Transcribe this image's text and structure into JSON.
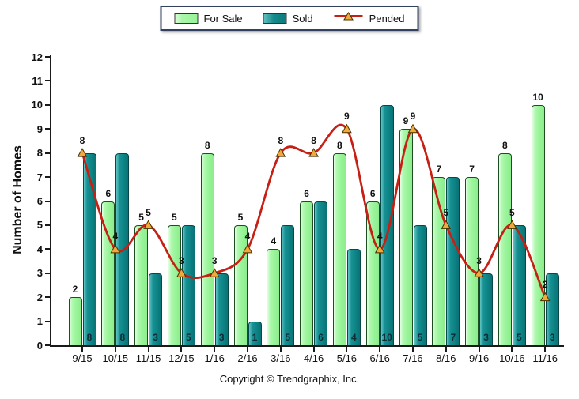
{
  "legend": {
    "items": [
      {
        "label": "For Sale",
        "color": "#99f599"
      },
      {
        "label": "Sold",
        "color": "#0e8587"
      },
      {
        "label": "Pended",
        "color": "#c62014"
      }
    ]
  },
  "y_axis": {
    "title": "Number of Homes",
    "min": 0,
    "max": 12,
    "tick_step": 1
  },
  "footer": {
    "copyright": "Copyright © Trendgraphix, Inc."
  },
  "chart_data": {
    "type": "bar",
    "categories": [
      "9/15",
      "10/15",
      "11/15",
      "12/15",
      "1/16",
      "2/16",
      "3/16",
      "4/16",
      "5/16",
      "6/16",
      "7/16",
      "8/16",
      "9/16",
      "10/16",
      "11/16"
    ],
    "series": [
      {
        "name": "For Sale",
        "type": "bar",
        "color": "#99f599",
        "values": [
          2,
          6,
          5,
          5,
          8,
          5,
          4,
          6,
          8,
          6,
          9,
          7,
          7,
          8,
          10
        ]
      },
      {
        "name": "Sold",
        "type": "bar",
        "color": "#0e8587",
        "values": [
          8,
          8,
          3,
          5,
          3,
          1,
          5,
          6,
          4,
          10,
          5,
          7,
          3,
          5,
          3
        ]
      },
      {
        "name": "Pended",
        "type": "line",
        "color": "#c62014",
        "marker": "triangle",
        "marker_color": "#f2a93b",
        "values": [
          8,
          4,
          5,
          3,
          3,
          4,
          8,
          8,
          9,
          4,
          9,
          5,
          3,
          5,
          2
        ]
      }
    ],
    "title": "",
    "xlabel": "",
    "ylabel": "Number of Homes",
    "ylim": [
      0,
      12
    ],
    "grid": false,
    "legend_position": "top"
  }
}
